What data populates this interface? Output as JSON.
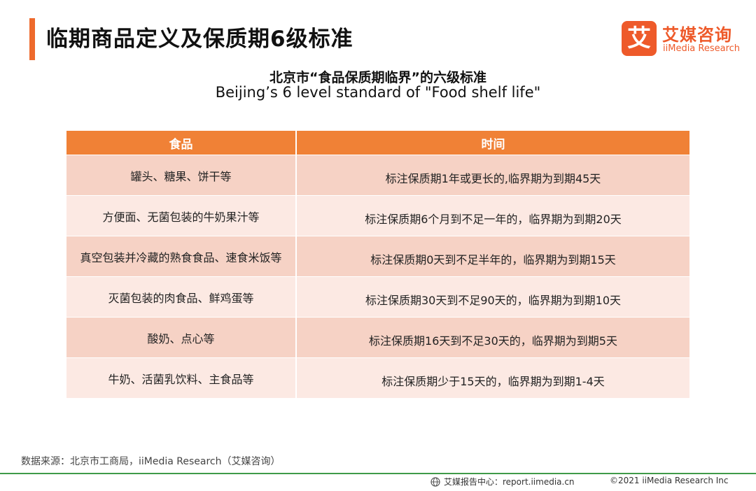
{
  "header": {
    "title": "临期商品定义及保质期6级标准",
    "logo_mark": "艾",
    "logo_cn": "艾媒咨询",
    "logo_en": "iiMedia Research"
  },
  "subtitle": {
    "cn": "北京市“食品保质期临界”的六级标准",
    "en": "Beijing’s 6 level  standard of \"Food shelf life\""
  },
  "table": {
    "columns": [
      "食品",
      "时间"
    ],
    "rows": [
      {
        "food": "罐头、糖果、饼干等",
        "time": "标注保质期1年或更长的,临界期为到期45天"
      },
      {
        "food": "方便面、无菌包装的牛奶果汁等",
        "time": "标注保质期6个月到不足一年的，临界期为到期20天"
      },
      {
        "food": "真空包装并冷藏的熟食食品、速食米饭等",
        "time": "标注保质期0天到不足半年的，临界期为到期15天"
      },
      {
        "food": "灭菌包装的肉食品、鲜鸡蛋等",
        "time": "标注保质期30天到不足90天的，临界期为到期10天"
      },
      {
        "food": "酸奶、点心等",
        "time": "标注保质期16天到不足30天的，临界期为到期5天"
      },
      {
        "food": "牛奶、活菌乳饮料、主食品等",
        "time": "标注保质期少于15天的，临界期为到期1-4天"
      }
    ]
  },
  "source": "数据来源：北京市工商局，iiMedia Research（艾媒咨询）",
  "footer": {
    "report": "艾媒报告中心：report.iimedia.cn",
    "copyright": "©2021  iiMedia Research  Inc"
  },
  "colors": {
    "accent": "#ee6a2c",
    "header_row": "#f08136",
    "row_dark": "#f6d2c5",
    "row_light": "#fce9e3",
    "footer_line": "#3f9a49"
  },
  "icons": {
    "brand": "iimedia-logo",
    "footer": "globe-icon"
  }
}
